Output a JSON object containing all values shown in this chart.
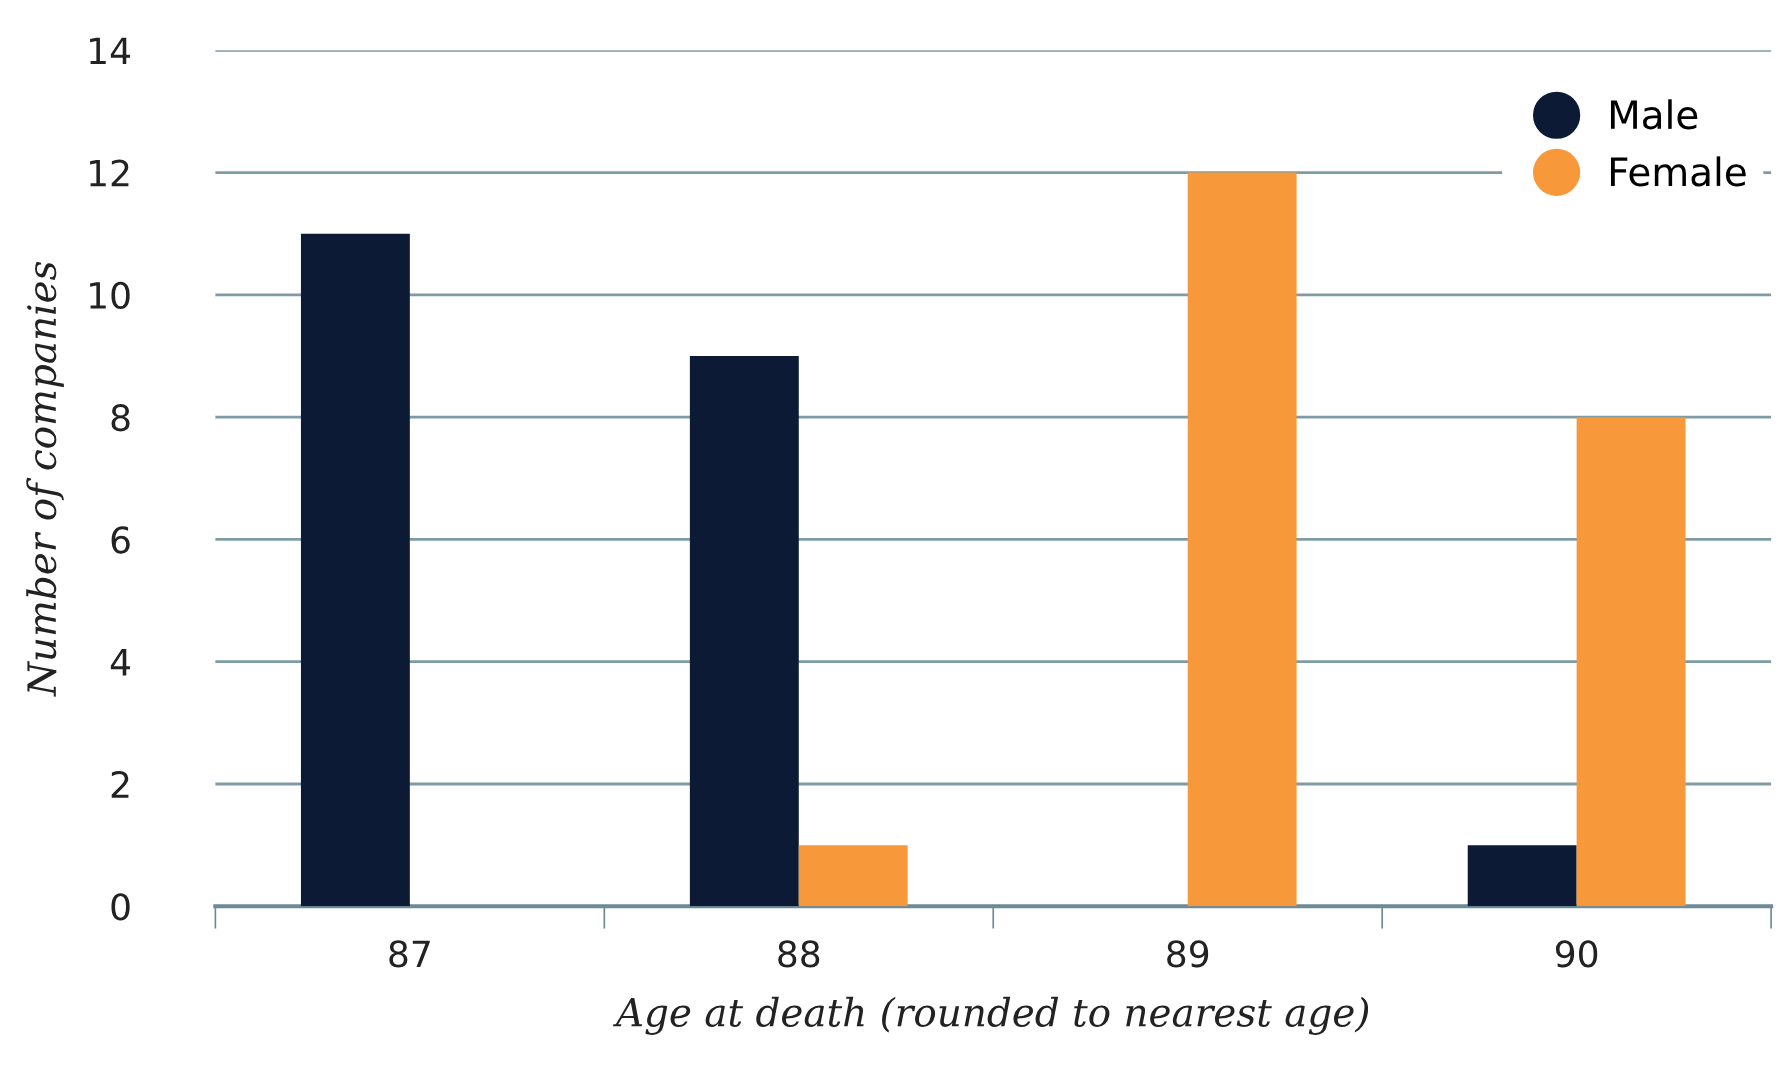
{
  "chart_data": {
    "type": "bar",
    "xlabel": "Age at death (rounded to nearest age)",
    "ylabel": "Number of companies",
    "categories": [
      "87",
      "88",
      "89",
      "90"
    ],
    "series": [
      {
        "name": "Male",
        "color": "#0c1a36",
        "values": [
          11,
          9,
          0,
          1
        ]
      },
      {
        "name": "Female",
        "color": "#f7993a",
        "values": [
          0,
          1,
          12,
          8
        ]
      }
    ],
    "ylim": [
      0,
      14
    ],
    "yticks": [
      0,
      2,
      4,
      6,
      8,
      10,
      12,
      14
    ],
    "grid": "y",
    "legend": "top right"
  }
}
